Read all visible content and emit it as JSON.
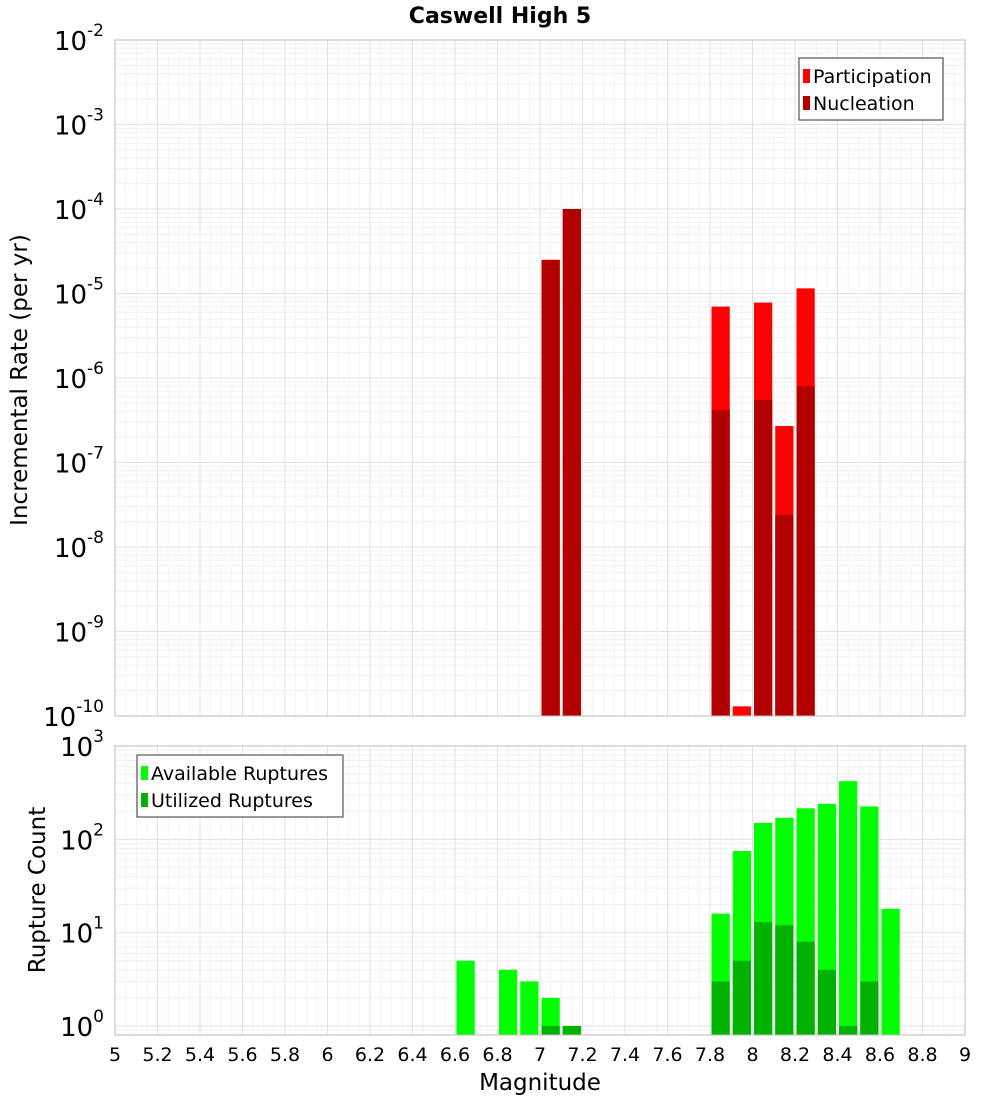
{
  "chart_data": [
    {
      "type": "bar",
      "title": "Caswell High 5",
      "xlabel": "",
      "ylabel": "Incremental Rate (per yr)",
      "yscale": "log",
      "xlim": [
        5,
        9
      ],
      "ylim": [
        1e-10,
        0.01
      ],
      "y_tick_exponents": [
        "-10",
        "-9",
        "-8",
        "-7",
        "-6",
        "-5",
        "-4",
        "-3",
        "-2"
      ],
      "y_tick_base": "10",
      "grid": true,
      "legend_position": "top-right",
      "bar_width": 0.1,
      "series": [
        {
          "name": "Participation",
          "color": "#ff0000",
          "x": [
            7.05,
            7.15,
            7.85,
            7.95,
            8.05,
            8.15,
            8.25
          ],
          "values": [
            2.5e-05,
            0.0001,
            7e-06,
            1.3e-10,
            7.8e-06,
            2.7e-07,
            1.15e-05
          ]
        },
        {
          "name": "Nucleation",
          "color": "#b20000",
          "x": [
            7.05,
            7.15,
            7.85,
            8.05,
            8.15,
            8.25
          ],
          "values": [
            2.5e-05,
            0.0001,
            4.2e-07,
            5.5e-07,
            2.4e-08,
            8e-07
          ]
        }
      ]
    },
    {
      "type": "bar",
      "title": "",
      "xlabel": "Magnitude",
      "ylabel": "Rupture Count",
      "yscale": "log",
      "xlim": [
        5,
        9
      ],
      "ylim": [
        0.8,
        1000
      ],
      "y_tick_exponents": [
        "0",
        "1",
        "2",
        "3"
      ],
      "y_tick_base": "10",
      "x_ticks": [
        "5",
        "5.2",
        "5.4",
        "5.6",
        "5.8",
        "6",
        "6.2",
        "6.4",
        "6.6",
        "6.8",
        "7",
        "7.2",
        "7.4",
        "7.6",
        "7.8",
        "8",
        "8.2",
        "8.4",
        "8.6",
        "8.8",
        "9"
      ],
      "grid": true,
      "legend_position": "top-left",
      "bar_width": 0.1,
      "series": [
        {
          "name": "Available Ruptures",
          "color": "#00ff00",
          "x": [
            6.65,
            6.85,
            6.95,
            7.05,
            7.15,
            7.85,
            7.95,
            8.05,
            8.15,
            8.25,
            8.35,
            8.45,
            8.55,
            8.65
          ],
          "values": [
            5,
            4,
            3,
            2,
            1,
            16,
            75,
            150,
            170,
            215,
            240,
            420,
            225,
            18
          ]
        },
        {
          "name": "Utilized Ruptures",
          "color": "#00b200",
          "x": [
            7.05,
            7.15,
            7.85,
            7.95,
            8.05,
            8.15,
            8.25,
            8.35,
            8.45,
            8.55
          ],
          "values": [
            1,
            1,
            3,
            5,
            13,
            12,
            8,
            4,
            1,
            3
          ]
        }
      ]
    }
  ]
}
